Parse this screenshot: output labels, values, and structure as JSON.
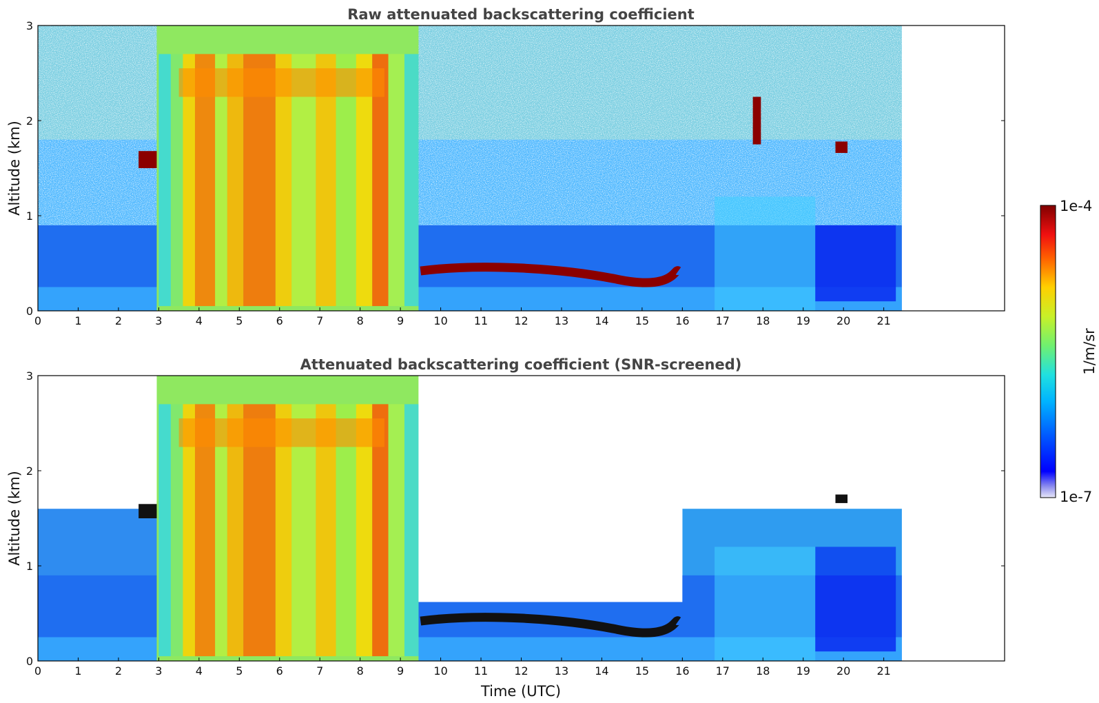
{
  "chart_data": [
    {
      "type": "heatmap",
      "title": "Raw attenuated backscattering coefficient",
      "xlabel": "",
      "ylabel": "Altitude (km)",
      "xlim": [
        0,
        24
      ],
      "ylim": [
        0,
        3
      ],
      "x_ticks": [
        "0",
        "1",
        "2",
        "3",
        "4",
        "5",
        "6",
        "7",
        "8",
        "9",
        "10",
        "11",
        "12",
        "13",
        "14",
        "15",
        "16",
        "17",
        "18",
        "19",
        "20",
        "21"
      ],
      "y_ticks": [
        "0",
        "1",
        "2",
        "3"
      ],
      "data_extent_x": [
        0,
        21.45
      ],
      "features": [
        {
          "name": "boundary layer",
          "x": [
            0,
            21.45
          ],
          "y": [
            0,
            0.9
          ],
          "level": "low"
        },
        {
          "name": "noise",
          "x": [
            0,
            21.45
          ],
          "y": [
            0.9,
            3
          ],
          "level": "noisy"
        },
        {
          "name": "thick cloud",
          "x": [
            2.95,
            9.45
          ],
          "y": [
            0,
            3
          ],
          "level": "high"
        },
        {
          "name": "cloud layer",
          "x": [
            2.5,
            3.0
          ],
          "y": [
            1.5,
            1.7
          ],
          "level": "saturated"
        },
        {
          "name": "stratocumulus top",
          "x": [
            9.5,
            15.9
          ],
          "y": [
            0.3,
            0.5
          ],
          "level": "saturated"
        },
        {
          "name": "cloud",
          "x": [
            17.7,
            18.0
          ],
          "y": [
            1.7,
            2.3
          ],
          "level": "saturated"
        },
        {
          "name": "cloud",
          "x": [
            19.8,
            20.1
          ],
          "y": [
            1.65,
            1.8
          ],
          "level": "saturated"
        }
      ]
    },
    {
      "type": "heatmap",
      "title": "Attenuated backscattering coefficient (SNR-screened)",
      "xlabel": "Time (UTC)",
      "ylabel": "Altitude (km)",
      "xlim": [
        0,
        24
      ],
      "ylim": [
        0,
        3
      ],
      "x_ticks": [
        "0",
        "1",
        "2",
        "3",
        "4",
        "5",
        "6",
        "7",
        "8",
        "9",
        "10",
        "11",
        "12",
        "13",
        "14",
        "15",
        "16",
        "17",
        "18",
        "19",
        "20",
        "21"
      ],
      "y_ticks": [
        "0",
        "1",
        "2",
        "3"
      ],
      "data_extent_x": [
        0,
        21.45
      ],
      "masked": "low SNR pixels removed"
    }
  ],
  "colorbar": {
    "colormap": "jet",
    "label": "1/m/sr",
    "max_label": "1e-4",
    "min_label": "1e-7",
    "vmin": 1e-07,
    "vmax": 0.0001,
    "scale": "log"
  }
}
